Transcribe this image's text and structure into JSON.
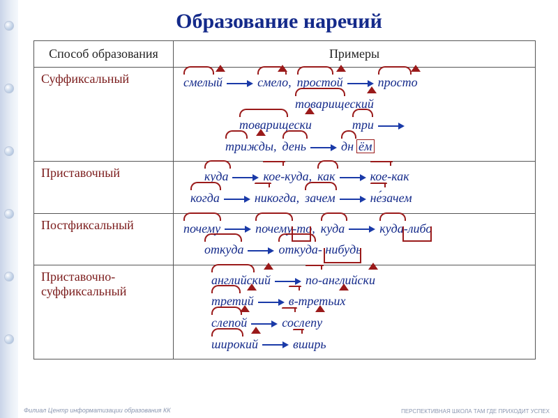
{
  "title": "Образование наречий",
  "header": {
    "method": "Способ образования",
    "examples": "Примеры"
  },
  "rows": [
    {
      "method": "Суффиксальный",
      "lines": [
        [
          {
            "w": "смелый",
            "root": {
              "rl": "0px",
              "rw": "40px"
            },
            "suffix": {
              "sr": "-4px"
            }
          },
          {
            "arrow": true
          },
          {
            "w": "смело,",
            "root": {
              "rl": "0px",
              "rw": "38px"
            },
            "suffix": {
              "sr": "6px"
            }
          },
          {
            "w": "простой",
            "root": {
              "rl": "0px",
              "rw": "48px"
            },
            "suffix": {
              "sr": "-4px"
            }
          },
          {
            "arrow": true
          },
          {
            "w": "просто",
            "root": {
              "rl": "0px",
              "rw": "44px"
            },
            "suffix": {
              "sr": "-4px"
            }
          }
        ],
        [
          {
            "pad": "160px"
          },
          {
            "w": "товарищеский",
            "root": {
              "rl": "0px",
              "rw": "68px"
            },
            "suffix": {
              "sr": "-4px"
            }
          }
        ],
        [
          {
            "pad": "80px"
          },
          {
            "w": "товарищески",
            "root": {
              "rl": "0px",
              "rw": "66px"
            },
            "suffix": {
              "sr": "-4px"
            }
          },
          {
            "pad": "50px"
          },
          {
            "w": "три",
            "root": {
              "rl": "0px",
              "rw": "26px"
            }
          },
          {
            "arrow": true
          }
        ],
        [
          {
            "pad": "60px"
          },
          {
            "w": "трижды,",
            "root": {
              "rl": "0px",
              "rw": "28px"
            },
            "suffix": {
              "sr": "16px"
            }
          },
          {
            "w": "день",
            "root": {
              "rl": "0px",
              "rw": "32px"
            }
          },
          {
            "arrow": true
          },
          {
            "w": "дн",
            "root": {
              "rl": "0px",
              "rw": "18px"
            }
          },
          {
            "raw": "<span class='ending-box'>ём</span>"
          }
        ]
      ]
    },
    {
      "method": "Приставочный",
      "lines": [
        [
          {
            "pad": "30px"
          },
          {
            "w": "куда",
            "root": {
              "rl": "0px",
              "rw": "34px"
            }
          },
          {
            "arrow": true
          },
          {
            "w": "кое-куда,",
            "prefix": {
              "pl": "0px",
              "pw": "28px"
            },
            "root": {
              "rl": "32px",
              "rw": "34px"
            }
          },
          {
            "w": "как",
            "root": {
              "rl": "0px",
              "rw": "26px"
            }
          },
          {
            "arrow": true
          },
          {
            "w": "кое-как",
            "prefix": {
              "pl": "0px",
              "pw": "28px"
            },
            "root": {
              "rl": "32px",
              "rw": "26px"
            }
          }
        ],
        [
          {
            "pad": "10px"
          },
          {
            "w": "когда",
            "root": {
              "rl": "0px",
              "rw": "40px"
            }
          },
          {
            "arrow": true
          },
          {
            "w": "никогда,",
            "prefix": {
              "pl": "0px",
              "pw": "20px"
            },
            "root": {
              "rl": "22px",
              "rw": "42px"
            }
          },
          {
            "w": "зачем",
            "root": {
              "rl": "0px",
              "rw": "42px"
            }
          },
          {
            "arrow": true
          },
          {
            "w": "не́зачем",
            "prefix": {
              "pl": "0px",
              "pw": "20px"
            },
            "root": {
              "rl": "22px",
              "rw": "42px"
            }
          }
        ]
      ]
    },
    {
      "method": "Постфиксальный",
      "lines": [
        [
          {
            "w": "почему",
            "root": {
              "rl": "0px",
              "rw": "50px"
            }
          },
          {
            "arrow": true
          },
          {
            "w": "почему-то,",
            "root": {
              "rl": "0px",
              "rw": "50px"
            },
            "postfix": {
              "xr": "6px",
              "xw": "24px"
            }
          },
          {
            "w": "куда",
            "root": {
              "rl": "0px",
              "rw": "34px"
            }
          },
          {
            "arrow": true
          },
          {
            "w": "куда-либо",
            "root": {
              "rl": "0px",
              "rw": "34px"
            },
            "postfix": {
              "xr": "0px",
              "xw": "38px"
            }
          }
        ],
        [
          {
            "pad": "30px"
          },
          {
            "w": "откуда",
            "root": {
              "rl": "0px",
              "rw": "50px"
            }
          },
          {
            "arrow": true
          },
          {
            "w": "откуда- нибудь",
            "root": {
              "rl": "0px",
              "rw": "50px"
            },
            "postfix": {
              "xr": "0px",
              "xw": "50px"
            }
          }
        ]
      ]
    },
    {
      "method": "Приставочно-суффиксальный",
      "lines": [
        [
          {
            "pad": "40px"
          },
          {
            "w": "английский",
            "root": {
              "rl": "0px",
              "rw": "58px"
            },
            "suffix": {
              "sr": "-4px"
            }
          },
          {
            "arrow": true
          },
          {
            "w": "по-английски",
            "prefix": {
              "pl": "0px",
              "pw": "22px"
            },
            "root": {
              "rl": "26px",
              "rw": "56px"
            },
            "suffix": {
              "sr": "-4px"
            }
          }
        ],
        [
          {
            "pad": "40px"
          },
          {
            "w": "третий",
            "root": {
              "rl": "0px",
              "rw": "38px"
            },
            "suffix": {
              "sr": "-4px"
            }
          },
          {
            "arrow": true
          },
          {
            "w": "в-третьих",
            "prefix": {
              "pl": "0px",
              "pw": "14px"
            },
            "root": {
              "rl": "18px",
              "rw": "38px"
            },
            "suffix": {
              "sr": "-4px"
            }
          }
        ],
        [
          {
            "pad": "40px"
          },
          {
            "w": "слепой",
            "root": {
              "rl": "0px",
              "rw": "40px"
            },
            "suffix": {
              "sr": "-4px"
            }
          },
          {
            "arrow": true
          },
          {
            "w": "сослепу",
            "prefix": {
              "pl": "0px",
              "pw": "18px"
            },
            "root": {
              "rl": "22px",
              "rw": "36px"
            },
            "suffix": {
              "sr": "-4px"
            }
          }
        ],
        [
          {
            "pad": "40px"
          },
          {
            "w": "широкий",
            "root": {
              "rl": "0px",
              "rw": "42px"
            },
            "suffix": {
              "sr": "-4px"
            }
          },
          {
            "arrow": true
          },
          {
            "w": "вширь",
            "prefix": {
              "pl": "0px",
              "pw": "12px"
            },
            "root": {
              "rl": "14px",
              "rw": "36px"
            }
          }
        ]
      ]
    }
  ],
  "footer_left": "Филиал\nЦентр информатизации образования КК",
  "footer_right": "ПЕРСПЕКТИВНАЯ ШКОЛА\nТАМ ГДЕ ПРИХОДИТ УСПЕХ",
  "colors": {
    "title": "#142a8a",
    "method": "#7a1a1a",
    "example_text": "#142a8a",
    "morpheme": "#9a1a1a",
    "arrow": "#1a3aa8",
    "border": "#555555",
    "band_light": "#e8eef6"
  },
  "dots_y": [
    30,
    120,
    210,
    300,
    390,
    480
  ]
}
